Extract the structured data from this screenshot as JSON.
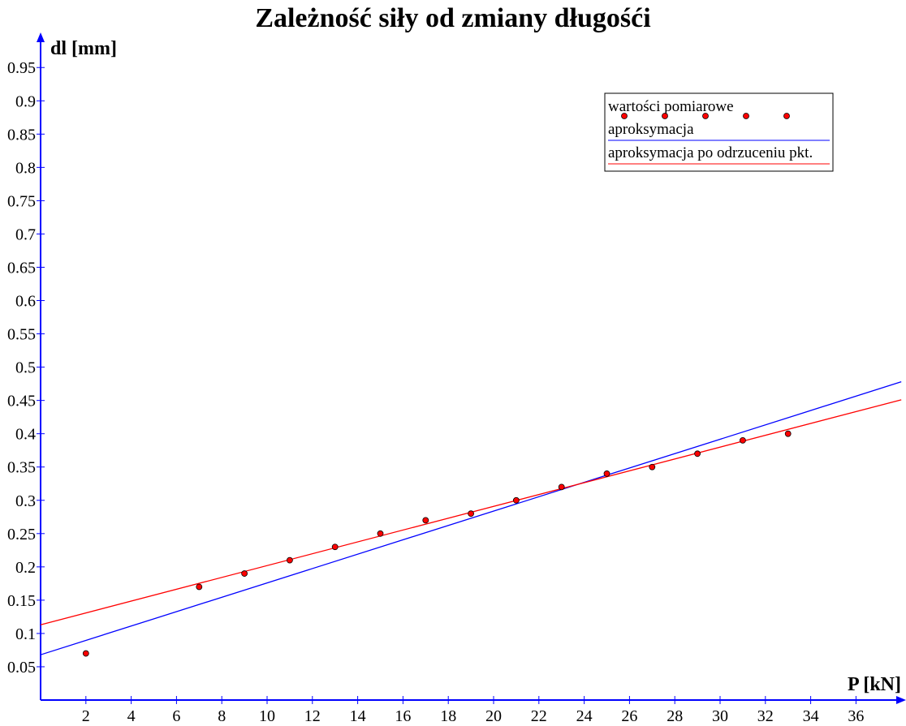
{
  "chart_data": {
    "type": "scatter",
    "title": "Zależność siły od zmiany długośći",
    "xlabel": "P [kN]",
    "ylabel": "dl [mm]",
    "xlim": [
      0,
      38
    ],
    "ylim": [
      0,
      1.0
    ],
    "xticks": [
      2,
      4,
      6,
      8,
      10,
      12,
      14,
      16,
      18,
      20,
      22,
      24,
      26,
      28,
      30,
      32,
      34,
      36
    ],
    "yticks": [
      0.05,
      0.1,
      0.15,
      0.2,
      0.25,
      0.3,
      0.35,
      0.4,
      0.45,
      0.5,
      0.55,
      0.6,
      0.65,
      0.7,
      0.75,
      0.8,
      0.85,
      0.9,
      0.95
    ],
    "grid": false,
    "legend_position": "top-right",
    "series": [
      {
        "name": "wartości pomiarowe",
        "kind": "points",
        "color": "#ff0000",
        "x": [
          2,
          7,
          9,
          11,
          13,
          15,
          17,
          19,
          21,
          23,
          25,
          27,
          29,
          31,
          33
        ],
        "y": [
          0.07,
          0.17,
          0.19,
          0.21,
          0.23,
          0.25,
          0.27,
          0.28,
          0.3,
          0.32,
          0.34,
          0.35,
          0.37,
          0.39,
          0.4
        ]
      },
      {
        "name": "aproksymacja",
        "kind": "line",
        "color": "#0000ff",
        "x": [
          0,
          38
        ],
        "y": [
          0.068,
          0.478
        ]
      },
      {
        "name": "aproksymacja po odrzuceniu pkt.",
        "kind": "line",
        "color": "#ff0000",
        "x": [
          0,
          38
        ],
        "y": [
          0.113,
          0.451
        ]
      }
    ]
  }
}
